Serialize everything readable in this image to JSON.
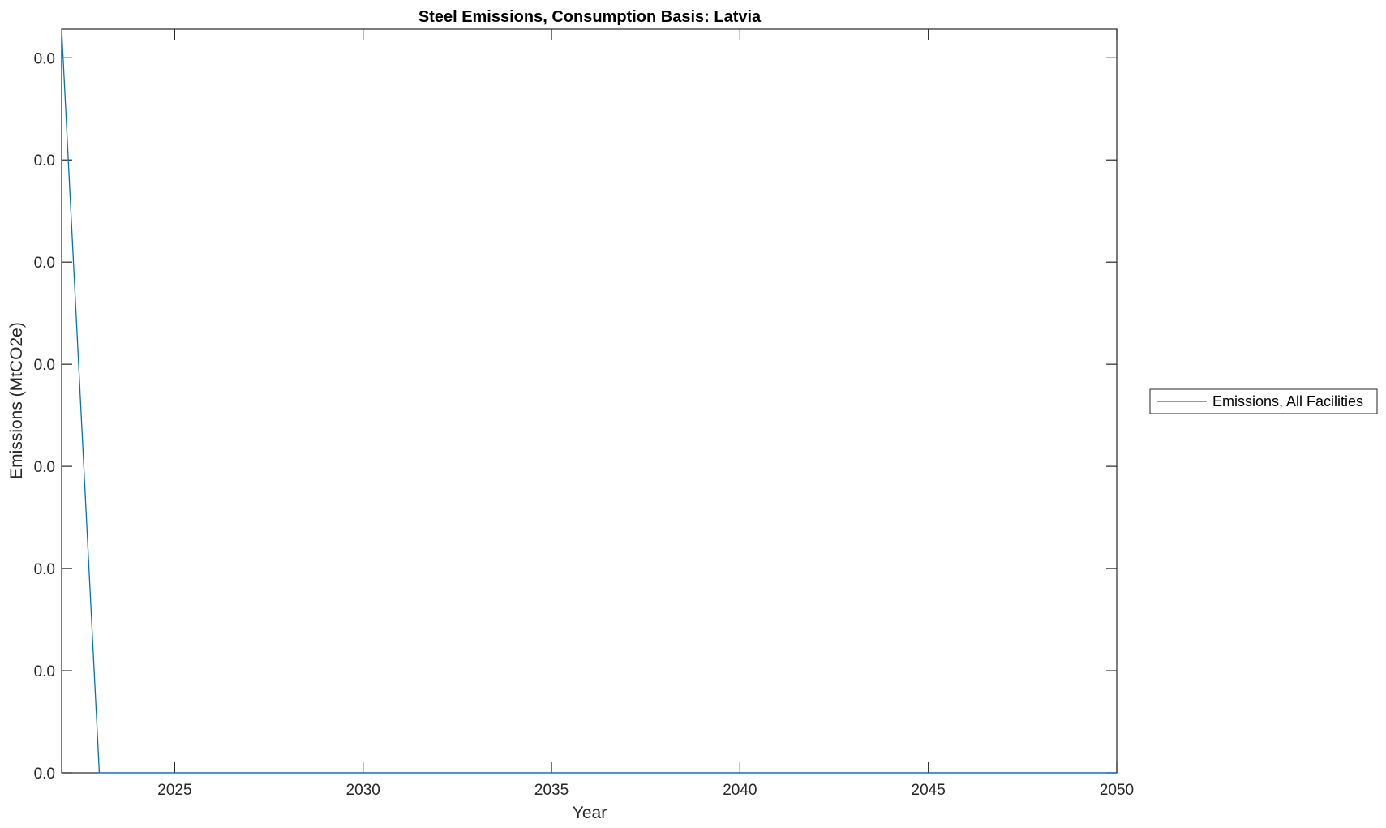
{
  "chart_data": {
    "type": "line",
    "title": "Steel Emissions, Consumption Basis: Latvia",
    "xlabel": "Year",
    "ylabel": "Emissions (MtCO2e)",
    "xlim": [
      2022,
      2050
    ],
    "xticks": [
      2025,
      2030,
      2035,
      2040,
      2045,
      2050
    ],
    "xtick_labels": [
      "2025",
      "2030",
      "2035",
      "2040",
      "2045",
      "2050"
    ],
    "ylim": [
      0,
      0.0364
    ],
    "yticks": [
      0,
      0.005,
      0.01,
      0.015,
      0.02,
      0.025,
      0.03,
      0.035
    ],
    "ytick_labels": [
      "0.0",
      "0.0",
      "0.0",
      "0.0",
      "0.0",
      "0.0",
      "0.0",
      "0.0"
    ],
    "grid": false,
    "legend_placement": "outside-right",
    "series": [
      {
        "name": "Emissions, All Facilities",
        "color": "#0072BD",
        "x": [
          2022,
          2023,
          2024,
          2025,
          2026,
          2027,
          2028,
          2029,
          2030,
          2031,
          2032,
          2033,
          2034,
          2035,
          2036,
          2037,
          2038,
          2039,
          2040,
          2041,
          2042,
          2043,
          2044,
          2045,
          2046,
          2047,
          2048,
          2049,
          2050
        ],
        "y": [
          0.0364,
          0,
          0,
          0,
          0,
          0,
          0,
          0,
          0,
          0,
          0,
          0,
          0,
          0,
          0,
          0,
          0,
          0,
          0,
          0,
          0,
          0,
          0,
          0,
          0,
          0,
          0,
          0,
          0
        ]
      }
    ]
  }
}
